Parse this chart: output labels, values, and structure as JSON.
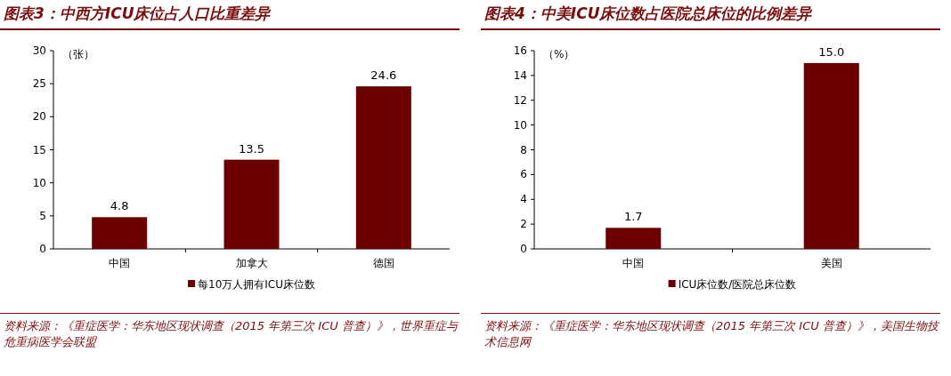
{
  "chart_data": [
    {
      "type": "bar",
      "title": "图表3：中西方ICU床位占人口比重差异",
      "ylabel": "（张）",
      "categories": [
        "中国",
        "加拿大",
        "德国"
      ],
      "series": [
        {
          "name": "每10万人拥有ICU床位数",
          "color": "#6b0000",
          "values": [
            4.8,
            13.5,
            24.6
          ]
        }
      ],
      "ylim": [
        0,
        30
      ],
      "yticks": [
        0,
        5,
        10,
        15,
        20,
        25,
        30
      ],
      "data_labels": true,
      "legend": "bottom",
      "annotations": [
        "资料来源：《重症医学：华东地区现状调查（2015 年第三次 ICU 普查）》，世界重症与危重病医学会联盟"
      ]
    },
    {
      "type": "bar",
      "title": "图表4：中美ICU床位数占医院总床位的比例差异",
      "ylabel": "（%）",
      "categories": [
        "中国",
        "美国"
      ],
      "series": [
        {
          "name": "ICU床位数/医院总床位数",
          "color": "#6b0000",
          "values": [
            1.7,
            15.0
          ],
          "value_labels": [
            "1.7",
            "15.0"
          ]
        }
      ],
      "ylim": [
        0,
        16
      ],
      "yticks": [
        0,
        2,
        4,
        6,
        8,
        10,
        12,
        14,
        16
      ],
      "legend": "bottom",
      "annotations": [
        "资料来源：《重症医学：华东地区现状调查（2015 年第三次 ICU 普查）》，美国生物技术信息网"
      ]
    }
  ]
}
